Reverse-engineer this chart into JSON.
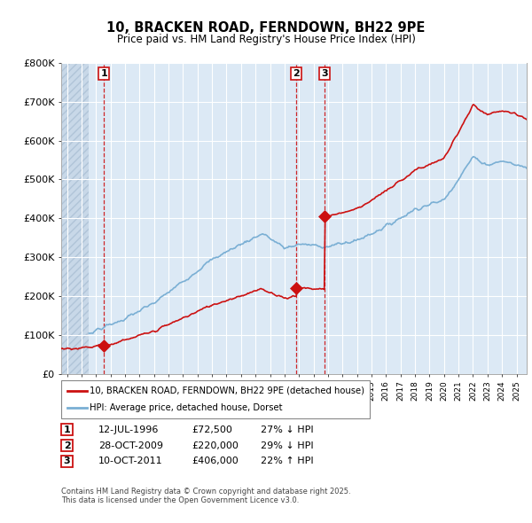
{
  "title": "10, BRACKEN ROAD, FERNDOWN, BH22 9PE",
  "subtitle": "Price paid vs. HM Land Registry's House Price Index (HPI)",
  "ylim": [
    0,
    800000
  ],
  "yticks": [
    0,
    100000,
    200000,
    300000,
    400000,
    500000,
    600000,
    700000,
    800000
  ],
  "ytick_labels": [
    "£0",
    "£100K",
    "£200K",
    "£300K",
    "£400K",
    "£500K",
    "£600K",
    "£700K",
    "£800K"
  ],
  "xlim_start": 1993.6,
  "xlim_end": 2025.7,
  "hpi_color": "#7aafd4",
  "price_color": "#cc1111",
  "plot_bg": "#dce9f5",
  "grid_color": "#ffffff",
  "transactions": [
    {
      "year": 1996.54,
      "price": 72500,
      "label": "1"
    },
    {
      "year": 2009.82,
      "price": 220000,
      "label": "2"
    },
    {
      "year": 2011.78,
      "price": 406000,
      "label": "3"
    }
  ],
  "vline_color": "#cc1111",
  "legend_line1": "10, BRACKEN ROAD, FERNDOWN, BH22 9PE (detached house)",
  "legend_line2": "HPI: Average price, detached house, Dorset",
  "table": [
    {
      "num": "1",
      "date": "12-JUL-1996",
      "price": "£72,500",
      "hpi": "27% ↓ HPI"
    },
    {
      "num": "2",
      "date": "28-OCT-2009",
      "price": "£220,000",
      "hpi": "29% ↓ HPI"
    },
    {
      "num": "3",
      "date": "10-OCT-2011",
      "price": "£406,000",
      "hpi": "22% ↑ HPI"
    }
  ],
  "footnote": "Contains HM Land Registry data © Crown copyright and database right 2025.\nThis data is licensed under the Open Government Licence v3.0.",
  "hatch_end_year": 1995.5
}
